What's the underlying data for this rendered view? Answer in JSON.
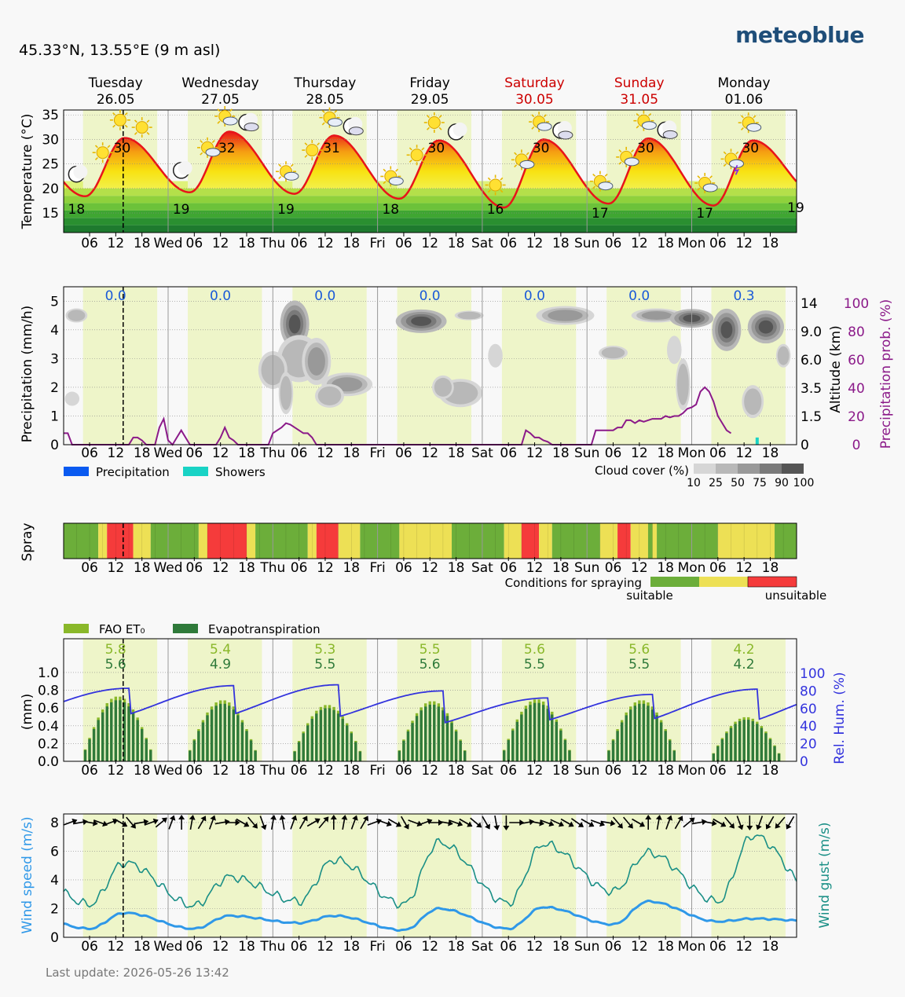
{
  "header": {
    "coords": "45.33°N, 13.55°E (9 m asl)",
    "brand": "meteoblue",
    "last_update": "Last update: 2026-05-26 13:42"
  },
  "days": [
    {
      "name": "Tuesday",
      "date": "26.05",
      "weekend": false,
      "short": ""
    },
    {
      "name": "Wednesday",
      "date": "27.05",
      "weekend": false,
      "short": "Wed"
    },
    {
      "name": "Thursday",
      "date": "28.05",
      "weekend": false,
      "short": "Thu"
    },
    {
      "name": "Friday",
      "date": "29.05",
      "weekend": false,
      "short": "Fri"
    },
    {
      "name": "Saturday",
      "date": "30.05",
      "weekend": true,
      "short": "Sat"
    },
    {
      "name": "Sunday",
      "date": "31.05",
      "weekend": true,
      "short": "Sun"
    },
    {
      "name": "Monday",
      "date": "01.06",
      "weekend": false,
      "short": "Mon"
    }
  ],
  "hour_ticks": [
    "06",
    "12",
    "18"
  ],
  "colors": {
    "weekend": "#cc0000",
    "daylight": "#eef5c9",
    "temp_line": "#e8141a",
    "precip_prob": "#8b1a89",
    "humidity": "#3333dd",
    "wind_speed": "#2f98e8",
    "wind_gust": "#1a8f86",
    "et0": "#8ab82a",
    "evapo": "#2f7a3a",
    "suitable": "#6cae3a",
    "marginal": "#ede055",
    "unsuitable": "#f53b3b"
  },
  "chart_data": [
    {
      "type": "line",
      "id": "temperature",
      "ylabel": "Temperature (°C)",
      "ylim": [
        11,
        36
      ],
      "yticks": [
        15,
        20,
        25,
        30,
        35
      ],
      "max_labels": [
        "30",
        "32",
        "31",
        "30",
        "30",
        "30",
        "30"
      ],
      "min_labels": [
        "18",
        "19",
        "19",
        "18",
        "16",
        "17",
        "17"
      ],
      "end_label": "19",
      "daily_max": [
        30.3,
        31.6,
        30.8,
        29.8,
        30.0,
        30.2,
        29.8
      ],
      "daily_min": [
        18.4,
        19.2,
        18.9,
        17.9,
        16.1,
        16.9,
        16.5
      ],
      "end_value": 18.6,
      "weather_icons": [
        "clear-night",
        "sunny",
        "sunny",
        "sunny",
        "clear-night",
        "sunny-cloud",
        "sunny-cloud",
        "cloudy-night",
        "sunny-cloud",
        "sunny",
        "partly-cloudy",
        "cloudy-night",
        "partly-cloudy",
        "sunny",
        "sunny",
        "clear-night",
        "sunny",
        "sunny-cloud",
        "sunny-cloud",
        "cloudy-night",
        "sunny-cloud",
        "sunny-cloud",
        "sunny-cloud",
        "cloudy-night",
        "partly-cloudy",
        "thunder",
        "partly-cloudy"
      ]
    },
    {
      "type": "line",
      "id": "precipitation",
      "ylabel": "Precipitation (mm/h)",
      "ylabel_right_alt": "Altitude (km)",
      "ylabel_right_prob": "Precipitation prob. (%)",
      "ylim": [
        0,
        5.5
      ],
      "yticks": [
        0,
        1,
        2,
        3,
        4,
        5
      ],
      "alt_ticks": [
        "0",
        "1.5",
        "3.5",
        "6.0",
        "9.0",
        "14"
      ],
      "prob_ticks": [
        "0",
        "20",
        "40",
        "60",
        "80",
        "100"
      ],
      "daily_totals": [
        "0.0",
        "0.0",
        "0.0",
        "0.0",
        "0.0",
        "0.0",
        "0.3"
      ],
      "precip_prob": [
        8,
        8,
        0,
        0,
        0,
        0,
        0,
        0,
        0,
        0,
        0,
        0,
        0,
        0,
        0,
        0,
        5,
        5,
        3,
        0,
        0,
        0,
        12,
        18,
        3,
        0,
        5,
        10,
        5,
        0,
        0,
        0,
        0,
        0,
        0,
        0,
        5,
        12,
        5,
        3,
        0,
        0,
        0,
        0,
        0,
        0,
        0,
        0,
        8,
        10,
        12,
        15,
        14,
        12,
        10,
        8,
        8,
        5,
        0,
        0,
        0,
        0,
        0,
        0,
        0,
        0,
        0,
        0,
        0,
        0,
        0,
        0,
        0,
        0,
        0,
        0,
        0,
        0,
        0,
        0,
        0,
        0,
        0,
        0,
        0,
        0,
        0,
        0,
        0,
        0,
        0,
        0,
        0,
        0,
        0,
        0,
        0,
        0,
        0,
        0,
        0,
        0,
        0,
        0,
        0,
        0,
        10,
        8,
        5,
        5,
        3,
        2,
        0,
        0,
        0,
        0,
        0,
        0,
        0,
        0,
        0,
        0,
        10,
        10,
        10,
        10,
        10,
        12,
        12,
        17,
        17,
        15,
        17,
        16,
        17,
        18,
        18,
        18,
        20,
        19,
        20,
        20,
        22,
        25,
        26,
        28,
        37,
        40,
        37,
        30,
        20,
        15,
        10,
        8
      ],
      "showers_bar": {
        "hour": 159,
        "value": 0.25
      },
      "cloud_blobs": [
        {
          "t": 3,
          "alt": 4.5,
          "w": 3,
          "h": 0.3,
          "l": 2
        },
        {
          "t": 2,
          "alt": 1.6,
          "w": 2,
          "h": 0.3,
          "l": 1
        },
        {
          "t": 53,
          "alt": 4.2,
          "w": 4,
          "h": 1.0,
          "l": 4
        },
        {
          "t": 54,
          "alt": 3.0,
          "w": 6,
          "h": 1.0,
          "l": 2
        },
        {
          "t": 48,
          "alt": 2.6,
          "w": 4,
          "h": 0.8,
          "l": 2
        },
        {
          "t": 58,
          "alt": 2.9,
          "w": 4,
          "h": 1.0,
          "l": 3
        },
        {
          "t": 65,
          "alt": 2.1,
          "w": 7,
          "h": 0.5,
          "l": 3
        },
        {
          "t": 61,
          "alt": 1.7,
          "w": 4,
          "h": 0.5,
          "l": 2
        },
        {
          "t": 51,
          "alt": 1.8,
          "w": 2,
          "h": 0.9,
          "l": 2
        },
        {
          "t": 82,
          "alt": 4.3,
          "w": 7,
          "h": 0.5,
          "l": 4
        },
        {
          "t": 93,
          "alt": 4.5,
          "w": 4,
          "h": 0.2,
          "l": 2
        },
        {
          "t": 91,
          "alt": 1.8,
          "w": 6,
          "h": 0.6,
          "l": 2
        },
        {
          "t": 87,
          "alt": 2.0,
          "w": 3,
          "h": 0.5,
          "l": 2
        },
        {
          "t": 99,
          "alt": 3.1,
          "w": 2,
          "h": 0.5,
          "l": 1
        },
        {
          "t": 115,
          "alt": 4.5,
          "w": 8,
          "h": 0.4,
          "l": 3
        },
        {
          "t": 126,
          "alt": 3.2,
          "w": 4,
          "h": 0.3,
          "l": 2
        },
        {
          "t": 140,
          "alt": 3.3,
          "w": 2,
          "h": 0.6,
          "l": 1
        },
        {
          "t": 136,
          "alt": 4.5,
          "w": 7,
          "h": 0.3,
          "l": 3
        },
        {
          "t": 144,
          "alt": 4.4,
          "w": 6,
          "h": 0.4,
          "l": 4
        },
        {
          "t": 142,
          "alt": 2.1,
          "w": 2,
          "h": 1.1,
          "l": 2
        },
        {
          "t": 152,
          "alt": 4.0,
          "w": 4,
          "h": 0.9,
          "l": 4
        },
        {
          "t": 161,
          "alt": 4.1,
          "w": 5,
          "h": 0.7,
          "l": 4
        },
        {
          "t": 158,
          "alt": 1.5,
          "w": 3,
          "h": 0.7,
          "l": 2
        },
        {
          "t": 165,
          "alt": 3.1,
          "w": 2,
          "h": 0.5,
          "l": 2
        }
      ]
    },
    {
      "type": "heatmap",
      "id": "spray",
      "ylabel": "Spray",
      "legend_title": "Conditions for spraying",
      "legend_suitable": "suitable",
      "legend_unsuitable": "unsuitable",
      "segments": [
        {
          "from": 0,
          "to": 8,
          "c": "s"
        },
        {
          "from": 8,
          "to": 10,
          "c": "m"
        },
        {
          "from": 10,
          "to": 16,
          "c": "u"
        },
        {
          "from": 16,
          "to": 20,
          "c": "m"
        },
        {
          "from": 20,
          "to": 31,
          "c": "s"
        },
        {
          "from": 31,
          "to": 33,
          "c": "m"
        },
        {
          "from": 33,
          "to": 42,
          "c": "u"
        },
        {
          "from": 42,
          "to": 44,
          "c": "m"
        },
        {
          "from": 44,
          "to": 56,
          "c": "s"
        },
        {
          "from": 56,
          "to": 58,
          "c": "m"
        },
        {
          "from": 58,
          "to": 63,
          "c": "u"
        },
        {
          "from": 63,
          "to": 68,
          "c": "m"
        },
        {
          "from": 68,
          "to": 77,
          "c": "s"
        },
        {
          "from": 77,
          "to": 89,
          "c": "m"
        },
        {
          "from": 89,
          "to": 101,
          "c": "s"
        },
        {
          "from": 101,
          "to": 105,
          "c": "m"
        },
        {
          "from": 105,
          "to": 109,
          "c": "u"
        },
        {
          "from": 109,
          "to": 112,
          "c": "m"
        },
        {
          "from": 112,
          "to": 123,
          "c": "s"
        },
        {
          "from": 123,
          "to": 127,
          "c": "m"
        },
        {
          "from": 127,
          "to": 130,
          "c": "u"
        },
        {
          "from": 130,
          "to": 134,
          "c": "m"
        },
        {
          "from": 134,
          "to": 135,
          "c": "s"
        },
        {
          "from": 135,
          "to": 136,
          "c": "m"
        },
        {
          "from": 136,
          "to": 150,
          "c": "s"
        },
        {
          "from": 150,
          "to": 163,
          "c": "m"
        },
        {
          "from": 163,
          "to": 168,
          "c": "s"
        }
      ]
    },
    {
      "type": "bar",
      "id": "evapotranspiration",
      "ylabel": "(mm)",
      "ylabel_right": "Rel. Hum. (%)",
      "ylim": [
        0,
        1.0
      ],
      "yticks": [
        "0.0",
        "0.2",
        "0.4",
        "0.6",
        "0.8",
        "1.0"
      ],
      "hum_ticks": [
        "0",
        "20",
        "40",
        "60",
        "80",
        "100"
      ],
      "series_names": [
        "FAO ET₀",
        "Evapotranspiration"
      ],
      "fao_daily": [
        "5.8",
        "5.4",
        "5.3",
        "5.5",
        "5.6",
        "5.6",
        "4.2"
      ],
      "evapo_daily": [
        "5.6",
        "4.9",
        "5.5",
        "5.6",
        "5.5",
        "5.5",
        "4.2"
      ],
      "daily_peak": [
        0.69,
        0.65,
        0.6,
        0.64,
        0.66,
        0.65,
        0.47
      ],
      "humidity_daily_max": [
        83,
        86,
        87,
        80,
        72,
        76,
        82
      ],
      "humidity_daily_min": [
        44,
        44,
        42,
        35,
        38,
        38,
        37
      ]
    },
    {
      "type": "line",
      "id": "wind",
      "ylabel": "Wind speed (m/s)",
      "ylabel_right": "Wind gust (m/s)",
      "ylim": [
        0,
        8.6
      ],
      "yticks": [
        0,
        2,
        4,
        6,
        8
      ],
      "gust_daily": [
        5.2,
        4.2,
        5.4,
        6.6,
        6.5,
        5.9,
        7.1
      ],
      "gust_base": [
        2.3,
        2.2,
        2.5,
        2.3,
        2.4,
        3.2,
        2.5
      ],
      "speed_daily": [
        1.7,
        1.5,
        1.5,
        2.0,
        2.1,
        2.5,
        1.3
      ],
      "speed_base": [
        0.6,
        0.6,
        1.0,
        0.5,
        0.6,
        0.9,
        1.1
      ],
      "arrow_dirs": [
        250,
        260,
        280,
        290,
        250,
        300,
        320,
        260,
        250,
        230,
        200,
        180,
        190,
        210,
        200,
        260,
        270,
        300,
        320,
        340,
        190,
        170,
        200,
        210,
        240,
        220,
        180,
        190,
        200,
        210,
        250,
        290,
        300,
        330,
        290,
        250,
        270,
        280,
        290,
        300,
        310,
        330,
        350,
        0,
        270,
        260,
        280,
        290,
        295,
        300,
        305,
        300,
        290,
        280,
        320,
        320,
        300,
        180,
        190,
        200,
        210,
        230,
        260,
        280,
        300,
        320,
        340,
        0,
        20,
        30,
        40,
        30
      ]
    }
  ]
}
